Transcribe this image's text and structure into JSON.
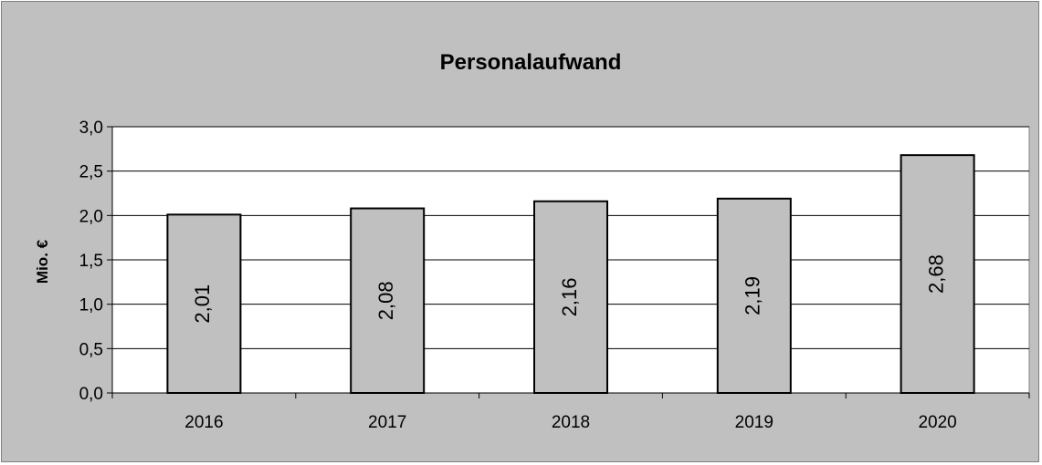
{
  "chart_data": {
    "type": "bar",
    "title": "Personalaufwand",
    "xlabel": "",
    "ylabel": "Mio. €",
    "categories": [
      "2016",
      "2017",
      "2018",
      "2019",
      "2020"
    ],
    "values": [
      2.01,
      2.08,
      2.16,
      2.19,
      2.68
    ],
    "data_labels": [
      "2,01",
      "2,08",
      "2,16",
      "2,19",
      "2,68"
    ],
    "ylim": [
      0,
      3.0
    ],
    "yticks": [
      0,
      0.5,
      1.0,
      1.5,
      2.0,
      2.5,
      3.0
    ],
    "ytick_labels": [
      "0,0",
      "0,5",
      "1,0",
      "1,5",
      "2,0",
      "2,5",
      "3,0"
    ],
    "grid": true,
    "legend": "none",
    "colors": {
      "bar_fill": "#c0c0c0",
      "bar_stroke": "#000000",
      "plot_background": "#ffffff",
      "chart_background": "#c0c0c0",
      "gridline": "#000000"
    }
  }
}
